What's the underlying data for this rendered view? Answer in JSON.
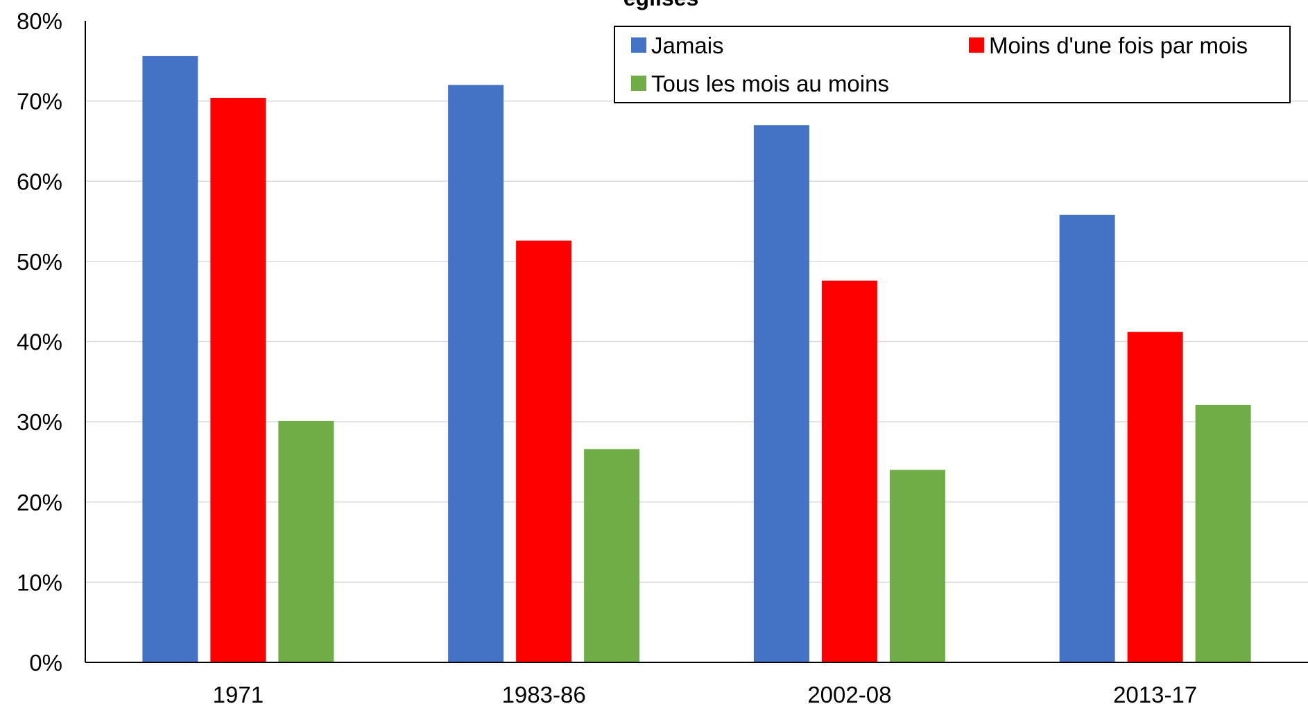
{
  "chart_data": {
    "type": "bar",
    "title": "églises",
    "xlabel": "",
    "ylabel": "",
    "categories": [
      "1971",
      "1983-86",
      "2002-08",
      "2013-17"
    ],
    "series": [
      {
        "name": "Jamais",
        "color": "#4472C4",
        "values": [
          75.6,
          72.0,
          67.0,
          55.8
        ]
      },
      {
        "name": "Moins d'une fois par mois",
        "color": "#FF0000",
        "values": [
          70.4,
          52.6,
          47.6,
          41.2
        ]
      },
      {
        "name": "Tous les mois au moins",
        "color": "#70AD47",
        "values": [
          30.1,
          26.6,
          24.0,
          32.1
        ]
      }
    ],
    "ylim": [
      0,
      80
    ],
    "yticks": [
      "0%",
      "10%",
      "20%",
      "30%",
      "40%",
      "50%",
      "60%",
      "70%",
      "80%"
    ],
    "y_unit": "%",
    "grid": true,
    "legend_position": "top-right"
  }
}
